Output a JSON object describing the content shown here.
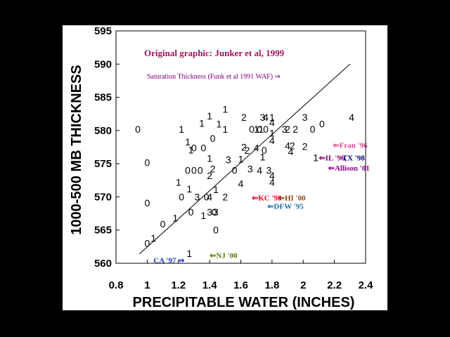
{
  "chart_data": {
    "type": "scatter",
    "title": "Original graphic: Junker et al, 1999",
    "xlabel": "PRECIPITABLE WATER (INCHES)",
    "ylabel": "1000-500 MB THICKNESS",
    "xlim": [
      0.8,
      2.4
    ],
    "ylim": [
      560,
      595
    ],
    "xticks": [
      "0.8",
      "1",
      "1.2",
      "1.4",
      "1.6",
      "1.8",
      "2",
      "2.2",
      "2.4"
    ],
    "yticks": [
      "560",
      "565",
      "570",
      "575",
      "580",
      "585",
      "590",
      "595"
    ],
    "grid": false,
    "saturation_label": "Saturation Thickness (Funk et al 1991 WAF) ⇒",
    "saturation_line": [
      [
        0.95,
        561.4
      ],
      [
        2.3,
        590.0
      ]
    ],
    "points": [
      {
        "x": 0.94,
        "y": 580.2,
        "label": "0"
      },
      {
        "x": 1.0,
        "y": 575.2,
        "label": "0"
      },
      {
        "x": 1.0,
        "y": 569.1,
        "label": "0"
      },
      {
        "x": 1.0,
        "y": 563.0,
        "label": "0"
      },
      {
        "x": 1.04,
        "y": 563.8,
        "label": "1"
      },
      {
        "x": 1.1,
        "y": 565.9,
        "label": "0"
      },
      {
        "x": 1.18,
        "y": 566.8,
        "label": "1"
      },
      {
        "x": 1.22,
        "y": 580.2,
        "label": "1"
      },
      {
        "x": 1.2,
        "y": 572.2,
        "label": "1"
      },
      {
        "x": 1.22,
        "y": 570.0,
        "label": "0"
      },
      {
        "x": 1.26,
        "y": 578.3,
        "label": "1"
      },
      {
        "x": 1.26,
        "y": 574.0,
        "label": "0"
      },
      {
        "x": 1.28,
        "y": 577.1,
        "label": "1"
      },
      {
        "x": 1.27,
        "y": 571.2,
        "label": "1"
      },
      {
        "x": 1.28,
        "y": 567.7,
        "label": "0"
      },
      {
        "x": 1.27,
        "y": 561.5,
        "label": "1"
      },
      {
        "x": 1.3,
        "y": 577.4,
        "label": "0"
      },
      {
        "x": 1.3,
        "y": 574.0,
        "label": "0"
      },
      {
        "x": 1.32,
        "y": 570.0,
        "label": "3"
      },
      {
        "x": 1.34,
        "y": 574.0,
        "label": "0"
      },
      {
        "x": 1.35,
        "y": 581.1,
        "label": "1"
      },
      {
        "x": 1.36,
        "y": 577.4,
        "label": "0"
      },
      {
        "x": 1.36,
        "y": 567.2,
        "label": "1"
      },
      {
        "x": 1.38,
        "y": 570.0,
        "label": "0"
      },
      {
        "x": 1.4,
        "y": 582.2,
        "label": "1"
      },
      {
        "x": 1.4,
        "y": 575.8,
        "label": "1"
      },
      {
        "x": 1.4,
        "y": 573.2,
        "label": "2"
      },
      {
        "x": 1.4,
        "y": 570.0,
        "label": "4"
      },
      {
        "x": 1.4,
        "y": 567.7,
        "label": "3"
      },
      {
        "x": 1.42,
        "y": 578.8,
        "label": "0"
      },
      {
        "x": 1.42,
        "y": 574.2,
        "label": "2"
      },
      {
        "x": 1.44,
        "y": 567.7,
        "label": "3"
      },
      {
        "x": 1.43,
        "y": 567.7,
        "label": "0"
      },
      {
        "x": 1.44,
        "y": 571.1,
        "label": "1"
      },
      {
        "x": 1.46,
        "y": 581.0,
        "label": "1"
      },
      {
        "x": 1.44,
        "y": 565.0,
        "label": "0"
      },
      {
        "x": 1.5,
        "y": 583.2,
        "label": "1"
      },
      {
        "x": 1.5,
        "y": 580.2,
        "label": "1"
      },
      {
        "x": 1.52,
        "y": 575.6,
        "label": "3"
      },
      {
        "x": 1.5,
        "y": 570.0,
        "label": "2"
      },
      {
        "x": 1.56,
        "y": 574.0,
        "label": "0"
      },
      {
        "x": 1.6,
        "y": 575.7,
        "label": "1"
      },
      {
        "x": 1.62,
        "y": 582.0,
        "label": "2"
      },
      {
        "x": 1.62,
        "y": 577.5,
        "label": "2"
      },
      {
        "x": 1.64,
        "y": 577.0,
        "label": "2"
      },
      {
        "x": 1.6,
        "y": 572.0,
        "label": "4"
      },
      {
        "x": 1.66,
        "y": 574.2,
        "label": "3"
      },
      {
        "x": 1.67,
        "y": 580.2,
        "label": "0"
      },
      {
        "x": 1.7,
        "y": 580.2,
        "label": "1"
      },
      {
        "x": 1.7,
        "y": 577.4,
        "label": "4"
      },
      {
        "x": 1.72,
        "y": 580.2,
        "label": "0"
      },
      {
        "x": 1.73,
        "y": 580.2,
        "label": "1"
      },
      {
        "x": 1.74,
        "y": 582.0,
        "label": "3"
      },
      {
        "x": 1.74,
        "y": 576.0,
        "label": "1"
      },
      {
        "x": 1.75,
        "y": 577.0,
        "label": "0"
      },
      {
        "x": 1.72,
        "y": 574.0,
        "label": "4"
      },
      {
        "x": 1.76,
        "y": 582.0,
        "label": "4"
      },
      {
        "x": 1.76,
        "y": 580.2,
        "label": "0"
      },
      {
        "x": 1.78,
        "y": 574.0,
        "label": "3"
      },
      {
        "x": 1.8,
        "y": 582.0,
        "label": "1"
      },
      {
        "x": 1.8,
        "y": 581.2,
        "label": "4"
      },
      {
        "x": 1.8,
        "y": 579.6,
        "label": "1"
      },
      {
        "x": 1.8,
        "y": 578.5,
        "label": "4"
      },
      {
        "x": 1.8,
        "y": 573.2,
        "label": "4"
      },
      {
        "x": 1.8,
        "y": 572.2,
        "label": "4"
      },
      {
        "x": 1.88,
        "y": 580.2,
        "label": "3"
      },
      {
        "x": 1.9,
        "y": 580.2,
        "label": "2"
      },
      {
        "x": 1.9,
        "y": 577.7,
        "label": "4"
      },
      {
        "x": 1.92,
        "y": 576.8,
        "label": "4"
      },
      {
        "x": 1.93,
        "y": 577.7,
        "label": "2"
      },
      {
        "x": 1.95,
        "y": 580.2,
        "label": "2"
      },
      {
        "x": 2.01,
        "y": 577.6,
        "label": "2"
      },
      {
        "x": 2.01,
        "y": 582.0,
        "label": "3"
      },
      {
        "x": 2.06,
        "y": 580.2,
        "label": "0"
      },
      {
        "x": 2.12,
        "y": 581.0,
        "label": "0"
      },
      {
        "x": 2.08,
        "y": 575.9,
        "label": "1"
      },
      {
        "x": 2.31,
        "y": 582.0,
        "label": "4"
      }
    ],
    "annotations": [
      {
        "text": "⇐Fran '96",
        "x": 2.19,
        "y": 577.8,
        "color": "#e0469a"
      },
      {
        "text": "⇐IL '96, ",
        "x": 2.1,
        "y": 575.9,
        "color": "#80006b"
      },
      {
        "text": "TX '98",
        "x": 2.25,
        "y": 575.9,
        "color": "#000080"
      },
      {
        "text": "⇐Allison '01",
        "x": 2.16,
        "y": 574.4,
        "color": "#8b008b"
      },
      {
        "text": "⇐KC '98",
        "x": 1.67,
        "y": 569.9,
        "color": "#e0001a"
      },
      {
        "text": "⇐HI '00",
        "x": 1.84,
        "y": 569.9,
        "color": "#8b4513"
      },
      {
        "text": "⇐DFW '95",
        "x": 1.77,
        "y": 568.6,
        "color": "#1c6ea4"
      },
      {
        "text": "CA '97 ⇒",
        "x": 1.04,
        "y": 560.5,
        "color": "#1a33cc"
      },
      {
        "text": "⇐NJ '00",
        "x": 1.4,
        "y": 561.2,
        "color": "#557a00"
      }
    ],
    "colors": {
      "title": "#a0125b",
      "saturation": "#800080"
    }
  }
}
